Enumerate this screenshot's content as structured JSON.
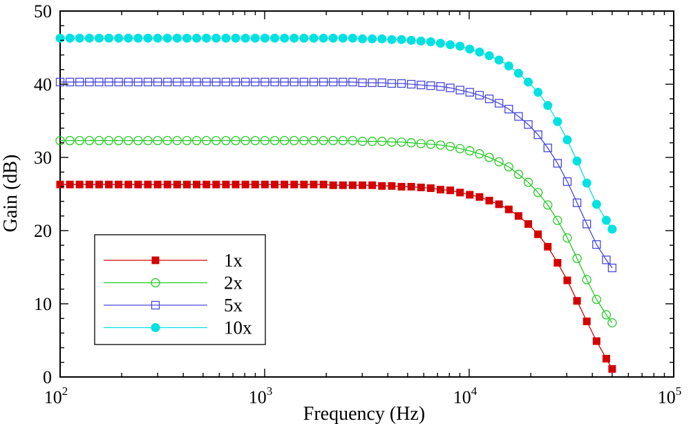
{
  "chart_data": {
    "type": "line",
    "title": "",
    "xlabel": "Frequency (Hz)",
    "ylabel": "Gain (dB)",
    "xscale": "log",
    "xlim": [
      100,
      100000
    ],
    "ylim": [
      0,
      50
    ],
    "grid": false,
    "legend_position": "bottom-left",
    "x_ticks": [
      {
        "value": 100,
        "base": "10",
        "exp": "2"
      },
      {
        "value": 1000,
        "base": "10",
        "exp": "3"
      },
      {
        "value": 10000,
        "base": "10",
        "exp": "4"
      },
      {
        "value": 100000,
        "base": "10",
        "exp": "5"
      }
    ],
    "y_ticks": [
      "0",
      "10",
      "20",
      "30",
      "40",
      "50"
    ],
    "x": [
      100,
      111.6,
      124.5,
      139,
      155.1,
      173.1,
      193.2,
      215.6,
      240.6,
      268.6,
      299.8,
      334.6,
      373.4,
      416.7,
      465.1,
      519.1,
      579.3,
      646.6,
      721.6,
      805.4,
      898.8,
      1003,
      1119.5,
      1249.5,
      1394.5,
      1556.3,
      1737,
      1938.6,
      2163.5,
      2414.6,
      2694.8,
      3007.6,
      3356.6,
      3746.2,
      4180.9,
      4666.2,
      5207.7,
      5812.1,
      6486.6,
      7239.5,
      8079.6,
      9017.3,
      10063.8,
      11231.7,
      12535.2,
      13990,
      15613.6,
      17425.5,
      19447.9,
      21704.8,
      24223.8,
      27035,
      30172.4,
      33674.1,
      37582,
      41943.6,
      46811.2,
      50000
    ],
    "series": [
      {
        "name": "1x",
        "color": "#d40000",
        "marker": "square-filled",
        "values": [
          26.3,
          26.3,
          26.3,
          26.3,
          26.3,
          26.3,
          26.3,
          26.3,
          26.3,
          26.3,
          26.3,
          26.3,
          26.3,
          26.3,
          26.3,
          26.3,
          26.3,
          26.3,
          26.3,
          26.3,
          26.3,
          26.3,
          26.3,
          26.3,
          26.3,
          26.3,
          26.3,
          26.3,
          26.2,
          26.2,
          26.2,
          26.2,
          26.2,
          26.1,
          26.1,
          26,
          26,
          25.9,
          25.8,
          25.6,
          25.5,
          25.2,
          24.9,
          24.6,
          24.1,
          23.6,
          22.9,
          22,
          20.9,
          19.5,
          17.8,
          15.6,
          13.2,
          10.4,
          7.6,
          4.9,
          2.5,
          1.1
        ]
      },
      {
        "name": "2x",
        "color": "#22cc22",
        "marker": "circle-open",
        "values": [
          32.3,
          32.3,
          32.3,
          32.3,
          32.3,
          32.3,
          32.3,
          32.3,
          32.3,
          32.3,
          32.3,
          32.3,
          32.3,
          32.3,
          32.3,
          32.3,
          32.3,
          32.3,
          32.3,
          32.3,
          32.3,
          32.3,
          32.3,
          32.3,
          32.3,
          32.3,
          32.3,
          32.3,
          32.3,
          32.3,
          32.3,
          32.2,
          32.2,
          32.2,
          32.1,
          32.1,
          32,
          31.9,
          31.8,
          31.7,
          31.5,
          31.2,
          30.9,
          30.5,
          30,
          29.4,
          28.7,
          27.7,
          26.6,
          25.2,
          23.5,
          21.4,
          19,
          16.2,
          13.3,
          10.6,
          8.5,
          7.4
        ]
      },
      {
        "name": "5x",
        "color": "#4646dc",
        "marker": "square-open",
        "values": [
          40.3,
          40.3,
          40.3,
          40.3,
          40.3,
          40.3,
          40.3,
          40.3,
          40.3,
          40.3,
          40.3,
          40.3,
          40.3,
          40.3,
          40.3,
          40.3,
          40.3,
          40.3,
          40.3,
          40.3,
          40.3,
          40.3,
          40.3,
          40.3,
          40.3,
          40.3,
          40.3,
          40.3,
          40.3,
          40.3,
          40.3,
          40.2,
          40.2,
          40.2,
          40.1,
          40.1,
          40,
          39.9,
          39.8,
          39.7,
          39.5,
          39.2,
          38.9,
          38.5,
          38,
          37.4,
          36.6,
          35.6,
          34.5,
          33.1,
          31.3,
          29.2,
          26.7,
          23.8,
          20.9,
          18.1,
          16,
          14.9
        ]
      },
      {
        "name": "10x",
        "color": "#00e1e1",
        "marker": "circle-filled",
        "values": [
          46.3,
          46.3,
          46.3,
          46.3,
          46.3,
          46.3,
          46.3,
          46.3,
          46.3,
          46.3,
          46.3,
          46.3,
          46.3,
          46.3,
          46.3,
          46.3,
          46.3,
          46.3,
          46.3,
          46.3,
          46.3,
          46.3,
          46.3,
          46.3,
          46.3,
          46.3,
          46.3,
          46.3,
          46.3,
          46.3,
          46.3,
          46.2,
          46.2,
          46.2,
          46.1,
          46.1,
          46,
          45.9,
          45.8,
          45.6,
          45.4,
          45.2,
          44.8,
          44.4,
          43.9,
          43.3,
          42.5,
          41.5,
          40.3,
          38.9,
          37.1,
          34.9,
          32.4,
          29.5,
          26.5,
          23.6,
          21.4,
          20.2
        ]
      }
    ]
  }
}
